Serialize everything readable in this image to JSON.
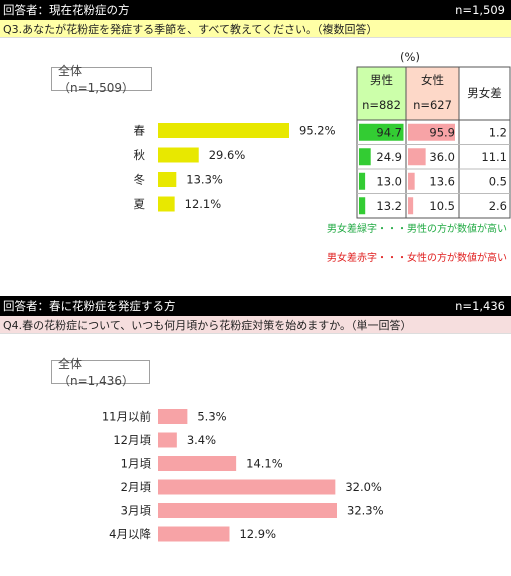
{
  "section1": {
    "header_left": "回答者：現在花粉症の方",
    "header_right": "n=1,509",
    "question": "Q3.あなたが花粉症を発症する季節を、すべて教えてください。（複数回答）",
    "total_label": "全体（n=1,509）",
    "unit_label": "(%)",
    "col_male_title": "男性",
    "col_male_n": "n=882",
    "col_female_title": "女性",
    "col_female_n": "n=627",
    "col_diff_title": "男女差",
    "note_green": "男女差緑字・・・男性の方が数値が高い",
    "note_red": "男女差赤字・・・女性の方が数値が高い"
  },
  "section2": {
    "header_left": "回答者：春に花粉症を発症する方",
    "header_right": "n=1,436",
    "question": "Q4.春の花粉症について、いつも何月頃から花粉症対策を始めますか。（単一回答）",
    "total_label": "全体（n=1,436）"
  },
  "colors": {
    "bar_q3": "#e8e800",
    "bar_q4": "#f7a3a6",
    "male_bar": "#33cc33",
    "female_bar": "#f7a3a6",
    "male_header_bg": "#ccffaa",
    "female_header_bg": "#fdd8c8",
    "diff_green": "#22aa44",
    "diff_red": "#e02020"
  },
  "chart_data": [
    {
      "type": "bar",
      "orientation": "horizontal",
      "categories": [
        "春",
        "秋",
        "冬",
        "夏"
      ],
      "values": [
        95.2,
        29.6,
        13.3,
        12.1
      ],
      "value_labels": [
        "95.2%",
        "29.6%",
        "13.3%",
        "12.1%"
      ],
      "xlim": [
        0,
        100
      ]
    },
    {
      "type": "table",
      "categories": [
        "春",
        "秋",
        "冬",
        "夏"
      ],
      "male": [
        "94.7",
        "24.9",
        "13.0",
        "13.2"
      ],
      "female": [
        "95.9",
        "36.0",
        "13.6",
        "10.5"
      ],
      "diff": [
        "1.2",
        "11.1",
        "0.5",
        "2.6"
      ],
      "diff_color": [
        "red",
        "red",
        "red",
        "green"
      ]
    },
    {
      "type": "bar",
      "orientation": "horizontal",
      "categories": [
        "11月以前",
        "12月頃",
        "1月頃",
        "2月頃",
        "3月頃",
        "4月以降"
      ],
      "values": [
        5.3,
        3.4,
        14.1,
        32.0,
        32.3,
        12.9
      ],
      "value_labels": [
        "5.3%",
        "3.4%",
        "14.1%",
        "32.0%",
        "32.3%",
        "12.9%"
      ],
      "xlim": [
        0,
        35
      ]
    }
  ]
}
